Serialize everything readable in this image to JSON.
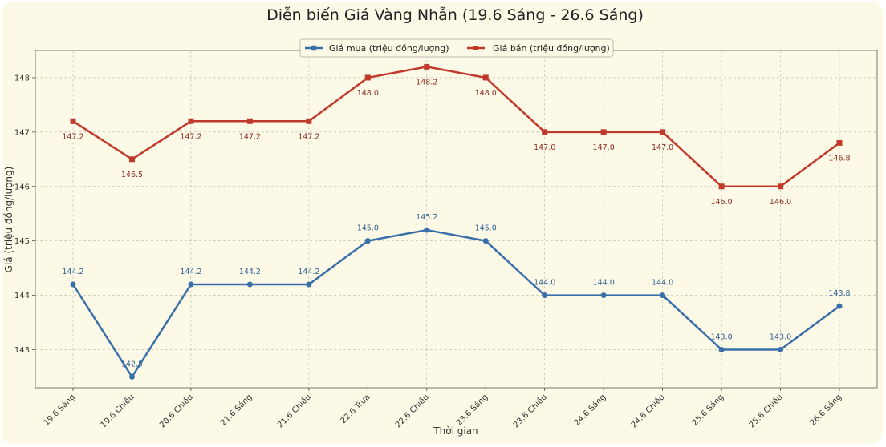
{
  "chart_data": {
    "type": "line",
    "title": "Diễn biến Giá Vàng Nhẫn (19.6 Sáng - 26.6 Sáng)",
    "xlabel": "Thời gian",
    "ylabel": "Giá (triệu đồng/lượng)",
    "categories": [
      "19.6 Sáng",
      "19.6 Chiều",
      "20.6 Chiều",
      "21.6 Sáng",
      "21.6 Chiều",
      "22.6 Trưa",
      "22.6 Chiều",
      "23.6 Sáng",
      "23.6 Chiều",
      "24.6 Sáng",
      "24.6 Chiều",
      "25.6 Sáng",
      "25.6 Chiều",
      "26.6 Sáng"
    ],
    "yticks": [
      143,
      144,
      145,
      146,
      147,
      148
    ],
    "ylim": [
      142.3,
      148.5
    ],
    "grid": true,
    "legend_position": "top-center",
    "series": [
      {
        "name": "Giá mua (triệu đồng/lượng)",
        "color": "#3a70aa",
        "marker": "circle",
        "values": [
          144.2,
          142.5,
          144.2,
          144.2,
          144.2,
          145.0,
          145.2,
          145.0,
          144.0,
          144.0,
          144.0,
          143.0,
          143.0,
          143.8
        ],
        "labels": [
          "144.2",
          "142.5",
          "144.2",
          "144.2",
          "144.2",
          "145.0",
          "145.2",
          "145.0",
          "144.0",
          "144.0",
          "144.0",
          "143.0",
          "143.0",
          "143.8"
        ]
      },
      {
        "name": "Giá bán (triệu đồng/lượng)",
        "color": "#c0392b",
        "marker": "square",
        "values": [
          147.2,
          146.5,
          147.2,
          147.2,
          147.2,
          148.0,
          148.2,
          148.0,
          147.0,
          147.0,
          147.0,
          146.0,
          146.0,
          146.8
        ],
        "labels": [
          "147.2",
          "146.5",
          "147.2",
          "147.2",
          "147.2",
          "148.0",
          "148.2",
          "148.0",
          "147.0",
          "147.0",
          "147.0",
          "146.0",
          "146.0",
          "146.8"
        ]
      }
    ]
  }
}
